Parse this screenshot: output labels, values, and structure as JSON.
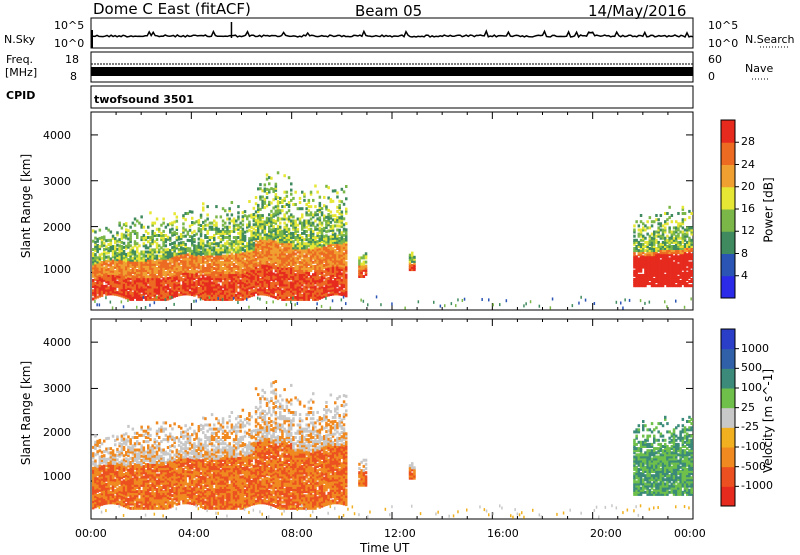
{
  "header": {
    "title": "Dome C East (fitACF)",
    "beam": "Beam 05",
    "date": "14/May/2016"
  },
  "sky_panel": {
    "left_label": "N.Sky",
    "right_label": "N.Search",
    "left_ticks": [
      "10^5",
      "10^0"
    ],
    "right_ticks": [
      "10^5",
      "10^0"
    ]
  },
  "freq_panel": {
    "left_label_line1": "Freq.",
    "left_label_line2": "[MHz]",
    "right_label": "Nave",
    "left_ticks": [
      "18",
      "8"
    ],
    "right_ticks": [
      "60",
      "0"
    ]
  },
  "cpid_panel": {
    "label": "CPID",
    "program": "twofsound 3501"
  },
  "chart_data": [
    {
      "type": "heatmap",
      "name": "power",
      "xlabel": "Time UT",
      "ylabel": "Slant Range [km]",
      "xlim": [
        0,
        24
      ],
      "ylim": [
        180,
        4500
      ],
      "yticks": [
        "1000",
        "2000",
        "3000",
        "4000"
      ],
      "colorbar_label": "Power [dB]",
      "colorbar_ticks": [
        "4",
        "8",
        "12",
        "16",
        "20",
        "24",
        "28"
      ],
      "colorbar_colors": [
        "#2a2ae8",
        "#2b55b5",
        "#3f8a5e",
        "#7ab648",
        "#e6e635",
        "#f0a030",
        "#ec6a22",
        "#e62a1e"
      ]
    },
    {
      "type": "heatmap",
      "name": "velocity",
      "xlabel": "Time UT",
      "ylabel": "Slant Range [km]",
      "xlim": [
        0,
        24
      ],
      "ylim": [
        180,
        4500
      ],
      "yticks": [
        "1000",
        "2000",
        "3000",
        "4000"
      ],
      "xticks": [
        "00:00",
        "04:00",
        "08:00",
        "12:00",
        "16:00",
        "20:00",
        "00:00"
      ],
      "colorbar_label": "Velocity [m s^-1]",
      "colorbar_ticks": [
        "1000",
        "500",
        "100",
        "25",
        "-25",
        "-100",
        "-500",
        "-1000"
      ],
      "colorbar_colors": [
        "#2a3ec8",
        "#3060a8",
        "#3b8a7a",
        "#6ec04a",
        "#c8c8c8",
        "#f0b020",
        "#f08a20",
        "#ec5020",
        "#e62a1e"
      ]
    }
  ],
  "time_axis": {
    "label": "Time UT",
    "ticks": [
      "00:00",
      "04:00",
      "08:00",
      "12:00",
      "16:00",
      "20:00",
      "00:00"
    ]
  }
}
